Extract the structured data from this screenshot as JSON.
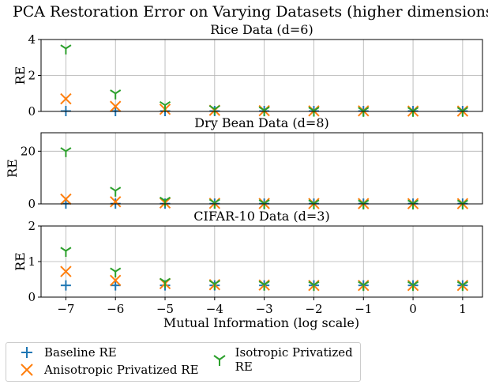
{
  "chart_data": {
    "title": "PCA Restoration Error on Varying Datasets (higher dimensions)",
    "xlabel": "Mutual Information (log scale)",
    "x": [
      -7,
      -6,
      -5,
      -4,
      -3,
      -2,
      -1,
      0,
      1
    ],
    "xtick_labels": [
      "−7",
      "−6",
      "−5",
      "−4",
      "−3",
      "−2",
      "−1",
      "0",
      "1"
    ],
    "xlim": [
      -7.5,
      1.4
    ],
    "grid": true,
    "legend_placement": "bottom-left, below plots",
    "series_colors": {
      "Baseline RE": "#1f77b4",
      "Anisotropic Privatized RE": "#ff7f0e",
      "Isotropic Privatized RE": "#2ca02c"
    },
    "legend": [
      {
        "name": "Baseline RE",
        "marker": "plus",
        "color": "#1f77b4"
      },
      {
        "name": "Anisotropic Privatized RE",
        "marker": "x",
        "color": "#ff7f0e"
      },
      {
        "name": "Isotropic Privatized RE",
        "marker": "tri_down",
        "color": "#2ca02c"
      }
    ],
    "subplots": [
      {
        "type": "scatter",
        "title": "Rice Data (d=6)",
        "ylabel": "RE",
        "ylim": [
          0,
          4
        ],
        "yticks": [
          0,
          2,
          4
        ],
        "ytick_labels": [
          "0",
          "2",
          "4"
        ],
        "series": [
          {
            "name": "Baseline RE",
            "marker": "plus",
            "values": [
              0.02,
              0.02,
              0.02,
              0.02,
              0.02,
              0.02,
              0.02,
              0.02,
              0.02
            ]
          },
          {
            "name": "Anisotropic Privatized RE",
            "marker": "x",
            "values": [
              0.7,
              0.28,
              0.12,
              0.06,
              0.04,
              0.03,
              0.03,
              0.02,
              0.02
            ]
          },
          {
            "name": "Isotropic Privatized RE",
            "marker": "tri_down",
            "values": [
              3.5,
              1.0,
              0.35,
              0.13,
              0.06,
              0.04,
              0.03,
              0.03,
              0.03
            ]
          }
        ]
      },
      {
        "type": "scatter",
        "title": "Dry Bean Data (d=8)",
        "ylabel": "RE",
        "ylim": [
          0,
          27
        ],
        "yticks": [
          0,
          20
        ],
        "ytick_labels": [
          "0",
          "20"
        ],
        "series": [
          {
            "name": "Baseline RE",
            "marker": "plus",
            "values": [
              0.1,
              0.1,
              0.1,
              0.1,
              0.1,
              0.1,
              0.1,
              0.1,
              0.1
            ]
          },
          {
            "name": "Anisotropic Privatized RE",
            "marker": "x",
            "values": [
              1.8,
              0.8,
              0.35,
              0.2,
              0.15,
              0.12,
              0.11,
              0.1,
              0.1
            ]
          },
          {
            "name": "Isotropic Privatized RE",
            "marker": "tri_down",
            "values": [
              20.0,
              5.0,
              1.2,
              0.4,
              0.2,
              0.15,
              0.12,
              0.11,
              0.1
            ]
          }
        ]
      },
      {
        "type": "scatter",
        "title": "CIFAR-10 Data (d=3)",
        "ylabel": "RE",
        "ylim": [
          0,
          2
        ],
        "yticks": [
          0,
          1,
          2
        ],
        "ytick_labels": [
          "0",
          "1",
          "2"
        ],
        "series": [
          {
            "name": "Baseline RE",
            "marker": "plus",
            "values": [
              0.33,
              0.33,
              0.33,
              0.33,
              0.33,
              0.33,
              0.33,
              0.33,
              0.33
            ]
          },
          {
            "name": "Anisotropic Privatized RE",
            "marker": "x",
            "values": [
              0.72,
              0.47,
              0.38,
              0.35,
              0.34,
              0.33,
              0.33,
              0.33,
              0.33
            ]
          },
          {
            "name": "Isotropic Privatized RE",
            "marker": "tri_down",
            "values": [
              1.3,
              0.72,
              0.43,
              0.37,
              0.35,
              0.34,
              0.34,
              0.34,
              0.34
            ]
          }
        ]
      }
    ]
  }
}
